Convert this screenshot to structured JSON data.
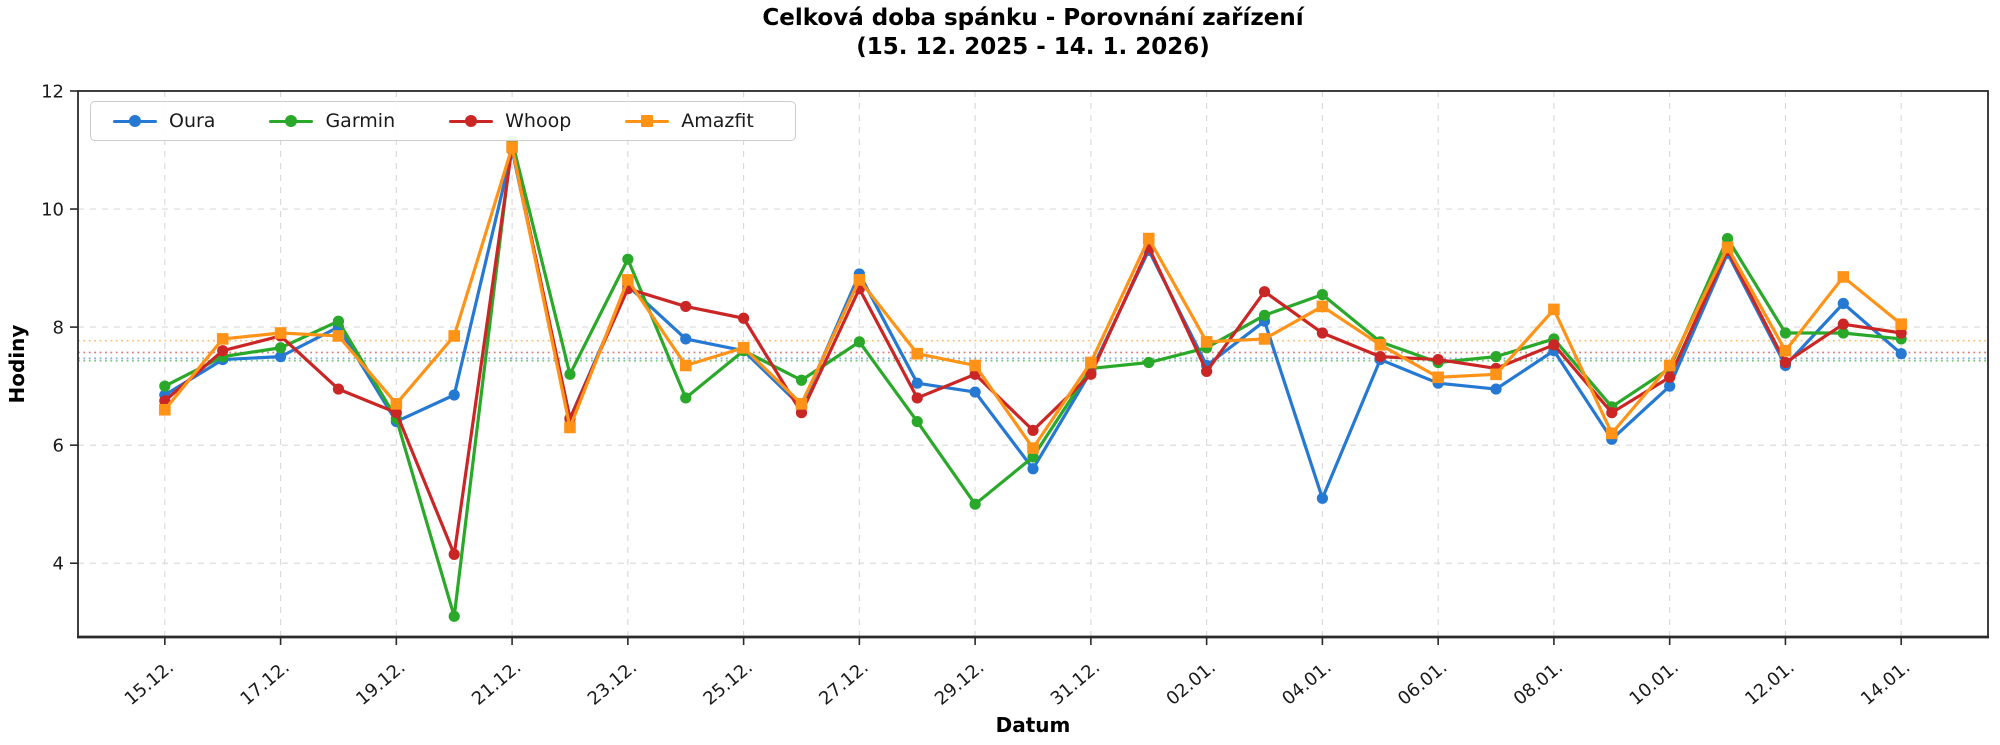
{
  "title": {
    "line1": "Celková doba spánku - Porovnání zařízení",
    "line2": "(15. 12. 2025 - 14. 1. 2026)"
  },
  "axes": {
    "xlabel": "Datum",
    "ylabel": "Hodiny",
    "ytick_labels": [
      "4",
      "6",
      "8",
      "10",
      "12"
    ],
    "xtick_labels": [
      "15.12.",
      "17.12.",
      "19.12.",
      "21.12.",
      "23.12.",
      "25.12.",
      "27.12.",
      "29.12.",
      "31.12.",
      "02.01.",
      "04.01.",
      "06.01.",
      "08.01.",
      "10.01.",
      "12.01.",
      "14.01."
    ]
  },
  "legend": {
    "items": [
      "Oura",
      "Garmin",
      "Whoop",
      "Amazfit"
    ]
  },
  "chart_data": {
    "type": "line",
    "title": "Celková doba spánku - Porovnání zařízení (15. 12. 2025 - 14. 1. 2026)",
    "xlabel": "Datum",
    "ylabel": "Hodiny",
    "ylim": [
      2.75,
      12
    ],
    "yticks": [
      4,
      6,
      8,
      10,
      12
    ],
    "grid": true,
    "legend_position": "upper-left",
    "x": [
      "15.12.",
      "16.12.",
      "17.12.",
      "18.12.",
      "19.12.",
      "20.12.",
      "21.12.",
      "22.12.",
      "23.12.",
      "24.12.",
      "25.12.",
      "26.12.",
      "27.12.",
      "28.12.",
      "29.12.",
      "30.12.",
      "31.12.",
      "01.01.",
      "02.01.",
      "03.01.",
      "04.01.",
      "05.01.",
      "06.01.",
      "07.01.",
      "08.01.",
      "09.01.",
      "10.01.",
      "11.01.",
      "12.01.",
      "13.01.",
      "14.01."
    ],
    "xtick_every": 2,
    "series": [
      {
        "name": "Oura",
        "color": "#2679d2",
        "marker": "circle",
        "mean": 7.47,
        "values": [
          6.85,
          7.45,
          7.5,
          8.0,
          6.4,
          6.85,
          11.0,
          6.45,
          8.7,
          7.8,
          7.6,
          6.65,
          8.9,
          7.05,
          6.9,
          5.6,
          7.25,
          9.3,
          7.35,
          8.1,
          5.1,
          7.45,
          7.05,
          6.95,
          7.6,
          6.1,
          7.0,
          9.25,
          7.35,
          8.4,
          7.55
        ]
      },
      {
        "name": "Garmin",
        "color": "#2aa82a",
        "marker": "circle",
        "mean": 7.43,
        "values": [
          7.0,
          7.5,
          7.65,
          8.1,
          6.45,
          3.1,
          11.15,
          7.2,
          9.15,
          6.8,
          7.6,
          7.1,
          7.75,
          6.4,
          5.0,
          5.8,
          7.3,
          7.4,
          7.65,
          8.2,
          8.55,
          7.75,
          7.4,
          7.5,
          7.8,
          6.65,
          7.3,
          9.5,
          7.9,
          7.9,
          7.8
        ]
      },
      {
        "name": "Whoop",
        "color": "#cb2626",
        "marker": "circle",
        "mean": 7.57,
        "values": [
          6.75,
          7.6,
          7.85,
          6.95,
          6.55,
          4.15,
          11.05,
          6.45,
          8.65,
          8.35,
          8.15,
          6.55,
          8.65,
          6.8,
          7.2,
          6.25,
          7.2,
          9.35,
          7.25,
          8.6,
          7.9,
          7.5,
          7.45,
          7.3,
          7.7,
          6.55,
          7.15,
          9.3,
          7.4,
          8.05,
          7.9
        ]
      },
      {
        "name": "Amazfit",
        "color": "#ff9318",
        "marker": "square",
        "mean": 7.77,
        "values": [
          6.6,
          7.8,
          7.9,
          7.85,
          6.7,
          7.85,
          11.05,
          6.3,
          8.8,
          7.35,
          7.65,
          6.7,
          8.8,
          7.55,
          7.35,
          5.95,
          7.4,
          9.5,
          7.75,
          7.8,
          8.35,
          7.7,
          7.15,
          7.2,
          8.3,
          6.2,
          7.35,
          9.35,
          7.6,
          8.85,
          8.05
        ]
      }
    ]
  },
  "style": {
    "grid_color": "#d9d9d9",
    "spine_color": "#2a2a2a",
    "text_color": "#1a1a1a"
  }
}
